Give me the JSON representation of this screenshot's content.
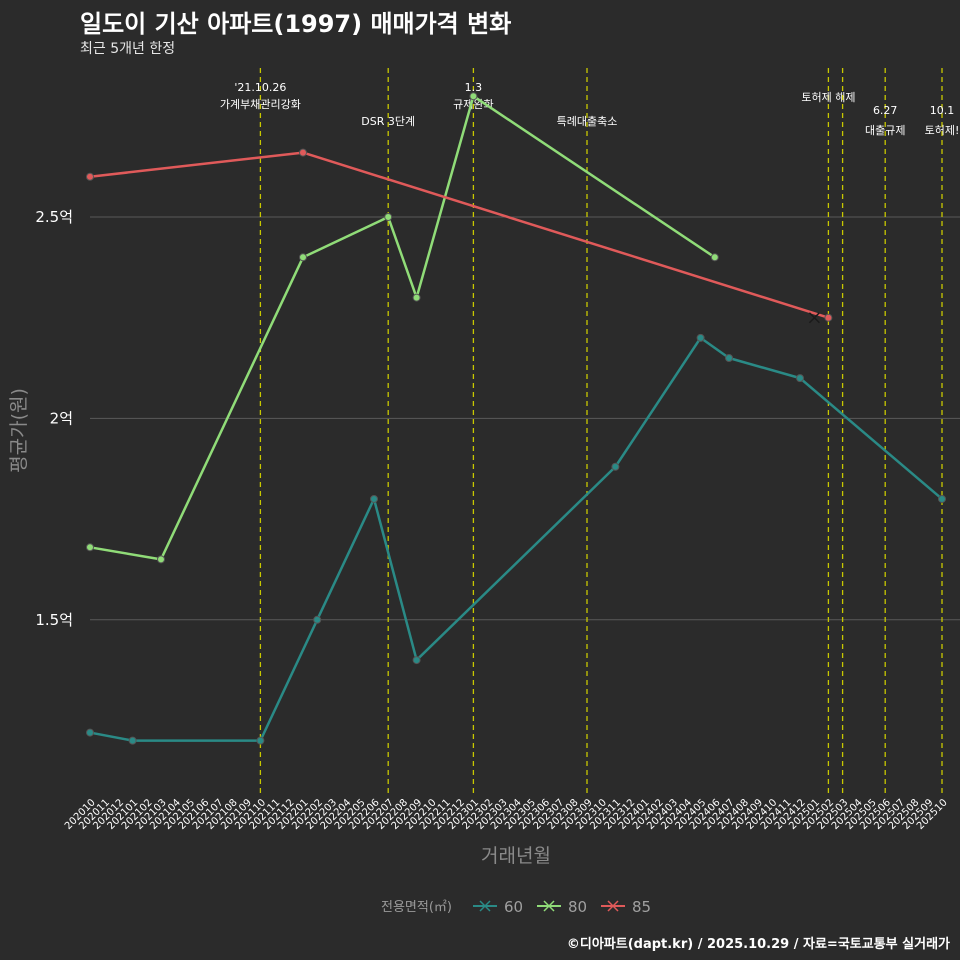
{
  "header": {
    "title": "일도이 기산 아파트(1997) 매매가격 변화",
    "subtitle": "최근 5개년 한정"
  },
  "footer": {
    "credit": "©디아파트(dapt.kr) / 2025.10.29 / 자료=국토교통부 실거래가"
  },
  "colors": {
    "background": "#2b2b2b",
    "grid": "#5a5a5a",
    "event_line": "#c8c800"
  },
  "chart_data": {
    "type": "line",
    "title": "일도이 기산 아파트(1997) 매매가격 변화",
    "xlabel": "거래년월",
    "ylabel": "평균가(원)",
    "ylim": [
      1.07,
      2.87
    ],
    "y_ticks": [
      {
        "value": 1.5,
        "label": "1.5억"
      },
      {
        "value": 2.0,
        "label": "2억"
      },
      {
        "value": 2.5,
        "label": "2.5억"
      }
    ],
    "categories": [
      "202010",
      "202011",
      "202012",
      "202101",
      "202102",
      "202103",
      "202104",
      "202105",
      "202106",
      "202107",
      "202108",
      "202109",
      "202110",
      "202111",
      "202112",
      "202201",
      "202202",
      "202203",
      "202204",
      "202205",
      "202206",
      "202207",
      "202208",
      "202209",
      "202210",
      "202211",
      "202212",
      "202301",
      "202302",
      "202303",
      "202304",
      "202305",
      "202306",
      "202307",
      "202308",
      "202309",
      "202310",
      "202311",
      "202312",
      "202401",
      "202402",
      "202403",
      "202404",
      "202405",
      "202406",
      "202407",
      "202408",
      "202409",
      "202410",
      "202411",
      "202412",
      "202501",
      "202502",
      "202503",
      "202504",
      "202505",
      "202506",
      "202507",
      "202508",
      "202509",
      "202510"
    ],
    "legend": {
      "title": "전용면적(㎡)",
      "position": "bottom"
    },
    "series": [
      {
        "name": "60",
        "color": "#2a8a86",
        "points": [
          [
            "202010",
            1.22
          ],
          [
            "202101",
            1.2
          ],
          [
            "202110",
            1.2
          ],
          [
            "202202",
            1.5
          ],
          [
            "202206",
            1.8
          ],
          [
            "202209",
            1.4
          ],
          [
            "202311",
            1.88
          ],
          [
            "202405",
            2.2
          ],
          [
            "202407",
            2.15
          ],
          [
            "202412",
            2.1
          ],
          [
            "202510",
            1.8
          ]
        ]
      },
      {
        "name": "80",
        "color": "#90dc78",
        "points": [
          [
            "202010",
            1.68
          ],
          [
            "202103",
            1.65
          ],
          [
            "202201",
            2.4
          ],
          [
            "202207",
            2.5
          ],
          [
            "202209",
            2.3
          ],
          [
            "202301",
            2.8
          ],
          [
            "202406",
            2.4
          ]
        ]
      },
      {
        "name": "85",
        "color": "#e05a5a",
        "points": [
          [
            "202010",
            2.6
          ],
          [
            "202201",
            2.66
          ],
          [
            "202502",
            2.25
          ]
        ]
      }
    ],
    "cross_marker": {
      "series": "85",
      "x": "202502",
      "y": 2.25
    },
    "events": [
      {
        "x": "202110",
        "lines": [
          "'21.10.26",
          "가계부채관리강화"
        ],
        "row": 0
      },
      {
        "x": "202207",
        "lines": [
          "DSR 3단계"
        ],
        "row": 2
      },
      {
        "x": "202301",
        "lines": [
          "1.3",
          "규제완화"
        ],
        "row": 0
      },
      {
        "x": "202309",
        "lines": [
          "특례대출축소"
        ],
        "row": 2
      },
      {
        "x": "202502",
        "lines": [
          "토허제 해제"
        ],
        "row": 1
      },
      {
        "x": "202503",
        "lines": [],
        "row": 1
      },
      {
        "x": "202506",
        "lines": [
          "6.27",
          "대출규제"
        ],
        "row": 2
      },
      {
        "x": "202510",
        "lines": [
          "10.1",
          "토허제!"
        ],
        "row": 2
      }
    ]
  }
}
